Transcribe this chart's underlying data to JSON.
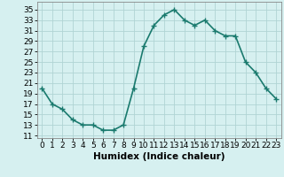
{
  "x": [
    0,
    1,
    2,
    3,
    4,
    5,
    6,
    7,
    8,
    9,
    10,
    11,
    12,
    13,
    14,
    15,
    16,
    17,
    18,
    19,
    20,
    21,
    22,
    23
  ],
  "y": [
    20,
    17,
    16,
    14,
    13,
    13,
    12,
    12,
    13,
    20,
    28,
    32,
    34,
    35,
    33,
    32,
    33,
    31,
    30,
    30,
    25,
    23,
    20,
    18
  ],
  "line_color": "#1a7a6e",
  "marker": "+",
  "marker_size": 4,
  "marker_lw": 1.0,
  "bg_color": "#d6f0f0",
  "grid_color": "#b0d4d4",
  "xlabel": "Humidex (Indice chaleur)",
  "xlabel_fontsize": 7.5,
  "yticks": [
    11,
    13,
    15,
    17,
    19,
    21,
    23,
    25,
    27,
    29,
    31,
    33,
    35
  ],
  "xticks": [
    0,
    1,
    2,
    3,
    4,
    5,
    6,
    7,
    8,
    9,
    10,
    11,
    12,
    13,
    14,
    15,
    16,
    17,
    18,
    19,
    20,
    21,
    22,
    23
  ],
  "ylim": [
    10.5,
    36.5
  ],
  "xlim": [
    -0.5,
    23.5
  ],
  "tick_fontsize": 6.5,
  "linewidth": 1.2
}
